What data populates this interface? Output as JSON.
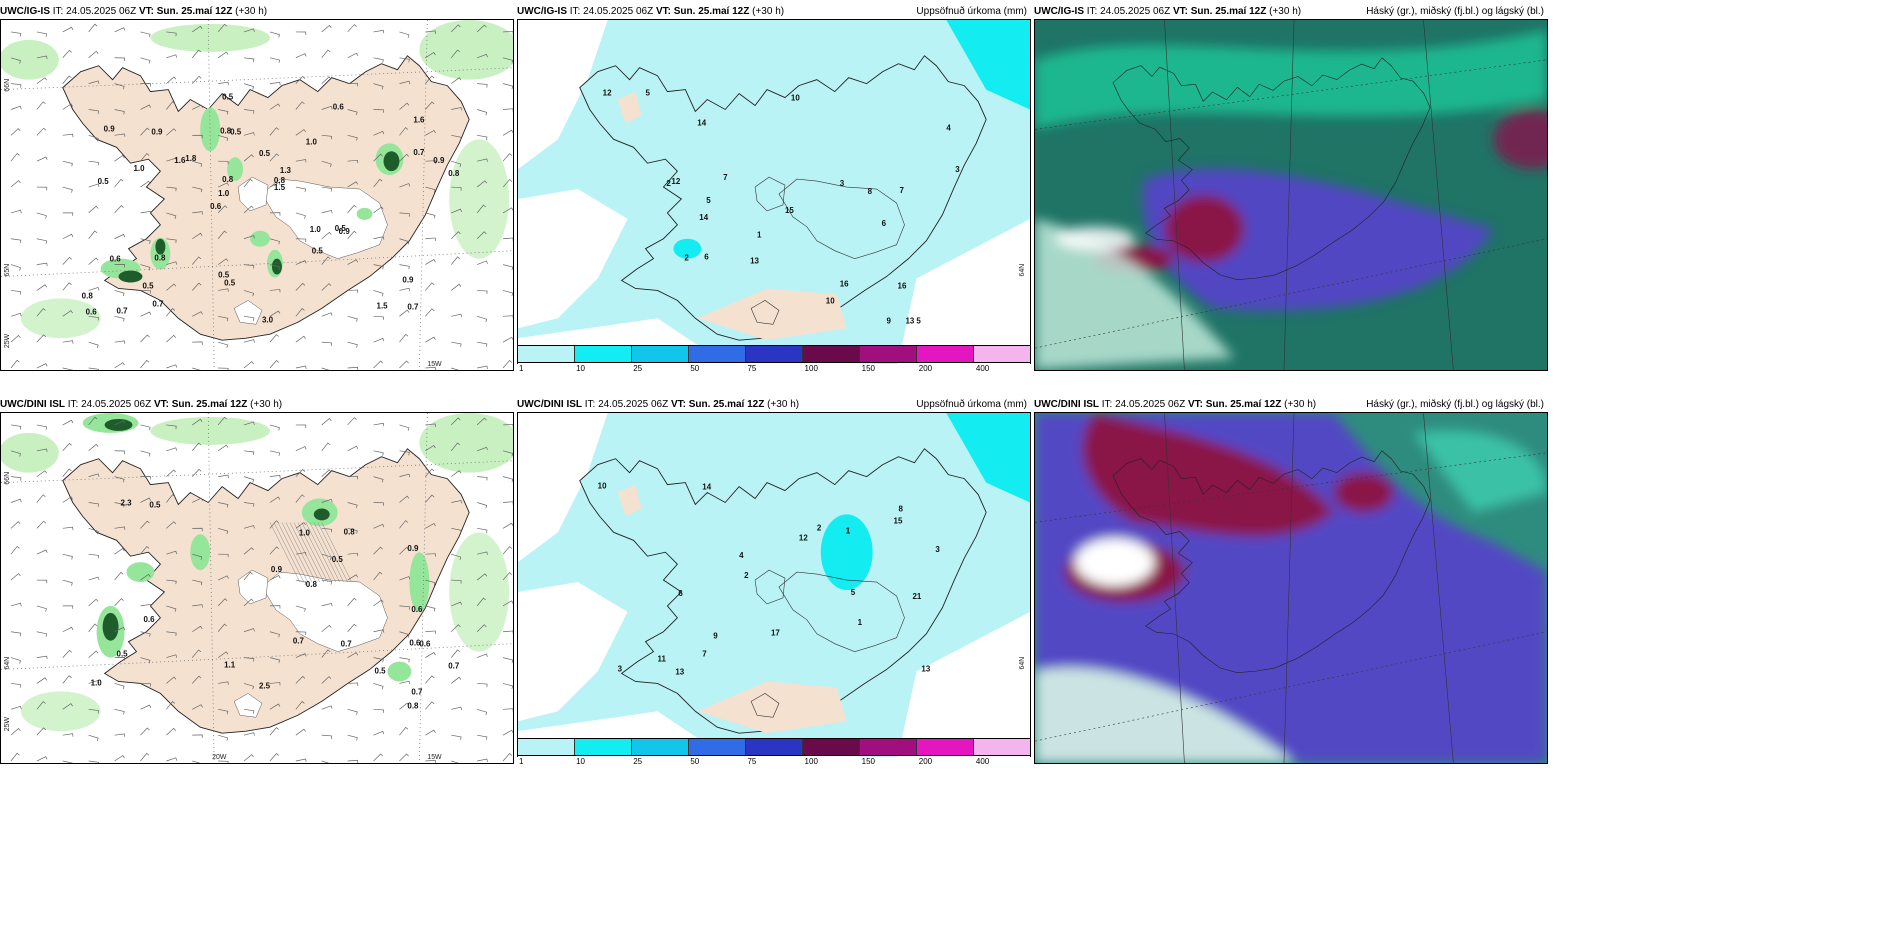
{
  "panels": [
    {
      "model": "UWC/IG-IS",
      "it": "24.05.2025 06Z",
      "vt": "Sun. 25.maí 12Z",
      "lead": "(+30 h)",
      "product": ""
    },
    {
      "model": "UWC/IG-IS",
      "it": "24.05.2025 06Z",
      "vt": "Sun. 25.maí 12Z",
      "lead": "(+30 h)",
      "product": "Uppsöfnuð úrkoma (mm)"
    },
    {
      "model": "UWC/IG-IS",
      "it": "24.05.2025 06Z",
      "vt": "Sun. 25.maí 12Z",
      "lead": "(+30 h)",
      "product": "Háský (gr.), miðský (fj.bl.) og lágský (bl.)"
    },
    {
      "model": "UWC/DINI ISL",
      "it": "24.05.2025 06Z",
      "vt": "Sun. 25.maí 12Z",
      "lead": "(+30 h)",
      "product": ""
    },
    {
      "model": "UWC/DINI ISL",
      "it": "24.05.2025 06Z",
      "vt": "Sun. 25.maí 12Z",
      "lead": "(+30 h)",
      "product": "Uppsöfnuð úrkoma (mm)"
    },
    {
      "model": "UWC/DINI ISL",
      "it": "24.05.2025 06Z",
      "vt": "Sun. 25.maí 12Z",
      "lead": "(+30 h)",
      "product": "Háský (gr.), miðský (fj.bl.) og lágský (bl.)"
    }
  ],
  "labels": {
    "it_prefix": "IT:",
    "vt_prefix": "VT:"
  },
  "axes": {
    "top_left": [
      "66N",
      "65N",
      "25W",
      "15W"
    ],
    "bottom_left": [
      "66N",
      "64N",
      "25W",
      "20W",
      "15W"
    ],
    "precip_lat": [
      "64N"
    ]
  },
  "colorbar": {
    "ticks": [
      "1",
      "10",
      "25",
      "50",
      "75",
      "100",
      "150",
      "200",
      "400"
    ],
    "colors": [
      "#b9f3f5",
      "#13ecf0",
      "#12c5ea",
      "#2f6ce6",
      "#2b35c4",
      "#6b0a4a",
      "#a10e7d",
      "#e416c0",
      "#f4b4ee"
    ]
  },
  "colors": {
    "land": "#f5e1d0",
    "snow": "#ffffff",
    "green_light": "#c8f0c0",
    "green_mid": "#95e69a",
    "green_dark": "#1f5c2b",
    "precip_light": "#b9f3f5",
    "cloud_teal": "#2e8f86",
    "cloud_green": "#1fd4a0",
    "cloud_purple": "#5544c8",
    "cloud_maroon": "#8a1546"
  },
  "values": {
    "wind_ig": [
      "0.7",
      "0.5",
      "1.6",
      "0.6",
      "1.0",
      "0.7",
      "0.8",
      "0.5",
      "0.6",
      "1.8",
      "0.8",
      "0.5",
      "0.5",
      "1.3",
      "0.9",
      "0.9",
      "0.5",
      "0.8",
      "1.0",
      "0.7",
      "1.0",
      "0.5",
      "0.8",
      "0.9",
      "0.6",
      "0.8",
      "1.5",
      "0.9",
      "0.5",
      "3.0",
      "1.6",
      "1.0",
      "0.5",
      "0.7",
      "0.9",
      "0.8",
      "0.6",
      "0.5",
      "1.5"
    ],
    "precip_ig": [
      "1",
      "2",
      "5",
      "6",
      "5",
      "14",
      "13",
      "14",
      "6",
      "8",
      "7",
      "10",
      "12",
      "9",
      "5",
      "16",
      "15",
      "3",
      "4",
      "7",
      "13",
      "12",
      "10",
      "2",
      "16",
      "3"
    ],
    "wind_dini": [
      "0.5",
      "0.8",
      "0.6",
      "0.7",
      "1.0",
      "0.5",
      "0.9",
      "0.5",
      "0.6",
      "1.0",
      "0.5",
      "0.7",
      "0.6",
      "2.5",
      "2.3",
      "1.1",
      "0.8",
      "0.9",
      "0.7",
      "0.7",
      "0.6",
      "0.8"
    ],
    "precip_dini": [
      "3",
      "1",
      "2",
      "5",
      "13",
      "15",
      "14",
      "17",
      "12",
      "13",
      "21",
      "11",
      "8",
      "9",
      "10",
      "4",
      "6",
      "2",
      "7",
      "3",
      "1"
    ]
  }
}
